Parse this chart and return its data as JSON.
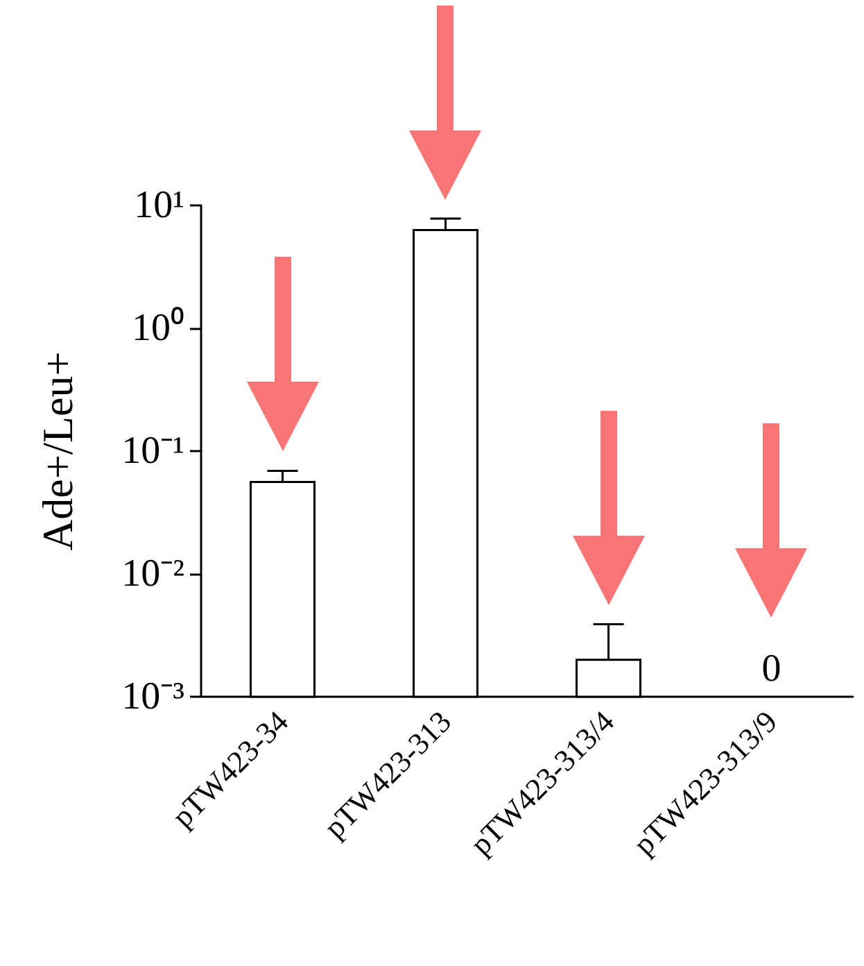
{
  "chart_data": {
    "type": "bar",
    "ylabel": "Ade+/Leu+",
    "categories": [
      "pTW423-34",
      "pTW423-313",
      "pTW423-313/4",
      "pTW423-313/9"
    ],
    "values": [
      0.056,
      6.3,
      0.002,
      null
    ],
    "errors": [
      [
        0.056,
        0.069
      ],
      [
        6.3,
        7.8
      ],
      [
        0.002,
        0.0039
      ],
      null
    ],
    "color": "#ffffff",
    "log": "y",
    "ylim": [
      0.001,
      10
    ],
    "yticks": [
      {
        "value": 0.001,
        "label": "10⁻³"
      },
      {
        "value": 0.01,
        "label": "10⁻²"
      },
      {
        "value": 0.1,
        "label": "10⁻¹"
      },
      {
        "value": 1,
        "label": "10⁰"
      },
      {
        "value": 10,
        "label": "10¹"
      }
    ],
    "annotations": [
      "0"
    ]
  }
}
